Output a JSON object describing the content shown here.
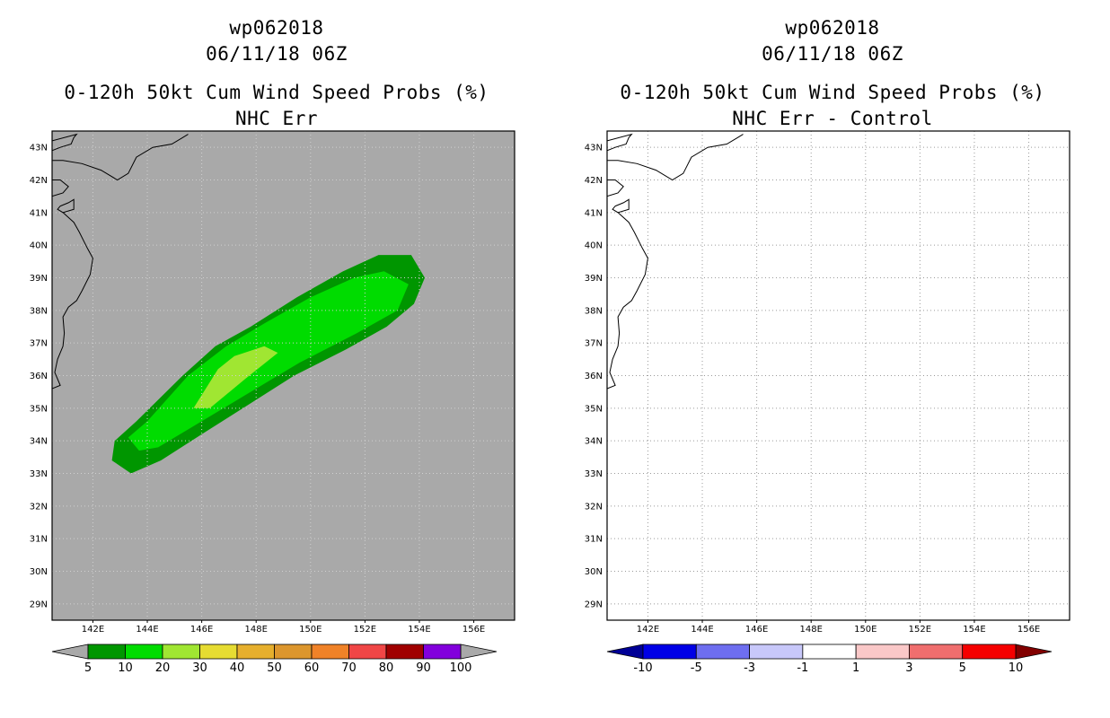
{
  "chart_data": [
    {
      "type": "heatmap",
      "storm_id": "wp062018",
      "datetime": "06/11/18 06Z",
      "title": "0-120h 50kt Cum Wind Speed Probs (%)",
      "subtitle": "NHC Err",
      "xlim": [
        140.5,
        157.5
      ],
      "ylim": [
        28.5,
        43.5
      ],
      "x_ticks": [
        "142E",
        "144E",
        "146E",
        "148E",
        "150E",
        "152E",
        "154E",
        "156E"
      ],
      "y_ticks": [
        "29N",
        "30N",
        "31N",
        "32N",
        "33N",
        "34N",
        "35N",
        "36N",
        "37N",
        "38N",
        "39N",
        "40N",
        "41N",
        "42N",
        "43N"
      ],
      "background": "#a9a9a9",
      "contours": [
        {
          "level": "5-10",
          "color": "#009600",
          "points": [
            [
              143.4,
              33.0
            ],
            [
              142.7,
              33.4
            ],
            [
              142.8,
              34.0
            ],
            [
              143.6,
              34.6
            ],
            [
              145.3,
              36.0
            ],
            [
              146.5,
              36.9
            ],
            [
              147.8,
              37.5
            ],
            [
              149.5,
              38.4
            ],
            [
              151.2,
              39.2
            ],
            [
              152.5,
              39.7
            ],
            [
              153.7,
              39.7
            ],
            [
              154.2,
              39.0
            ],
            [
              153.8,
              38.2
            ],
            [
              152.8,
              37.5
            ],
            [
              151.3,
              36.8
            ],
            [
              149.4,
              36.0
            ],
            [
              147.7,
              35.1
            ],
            [
              146.0,
              34.2
            ],
            [
              144.5,
              33.4
            ]
          ]
        },
        {
          "level": "10-20",
          "color": "#00dc00",
          "points": [
            [
              143.7,
              33.7
            ],
            [
              143.3,
              34.1
            ],
            [
              144.0,
              34.6
            ],
            [
              145.5,
              36.0
            ],
            [
              146.9,
              36.9
            ],
            [
              148.3,
              37.6
            ],
            [
              150.0,
              38.4
            ],
            [
              151.6,
              39.0
            ],
            [
              152.7,
              39.2
            ],
            [
              153.6,
              38.8
            ],
            [
              153.2,
              38.0
            ],
            [
              151.7,
              37.3
            ],
            [
              149.6,
              36.4
            ],
            [
              147.6,
              35.4
            ],
            [
              145.6,
              34.4
            ],
            [
              144.4,
              33.8
            ]
          ]
        },
        {
          "level": "20-30",
          "color": "#a0e632",
          "points": [
            [
              145.7,
              35.0
            ],
            [
              146.6,
              36.2
            ],
            [
              147.2,
              36.6
            ],
            [
              148.3,
              36.9
            ],
            [
              148.8,
              36.7
            ],
            [
              147.6,
              35.9
            ],
            [
              146.3,
              35.0
            ]
          ]
        }
      ],
      "colorbar": {
        "labels": [
          "5",
          "10",
          "20",
          "30",
          "40",
          "50",
          "60",
          "70",
          "80",
          "90",
          "100"
        ],
        "colors": [
          "#009600",
          "#00dc00",
          "#a0e632",
          "#e6dc32",
          "#e6af2d",
          "#dc962d",
          "#f08228",
          "#f04646",
          "#a00000",
          "#8200dc"
        ],
        "ends": [
          "#a9a9a9",
          "#a9a9a9"
        ]
      }
    },
    {
      "type": "heatmap",
      "storm_id": "wp062018",
      "datetime": "06/11/18 06Z",
      "title": "0-120h 50kt Cum Wind Speed Probs (%)",
      "subtitle": "NHC Err - Control",
      "xlim": [
        140.5,
        157.5
      ],
      "ylim": [
        28.5,
        43.5
      ],
      "x_ticks": [
        "142E",
        "144E",
        "146E",
        "148E",
        "150E",
        "152E",
        "154E",
        "156E"
      ],
      "y_ticks": [
        "29N",
        "30N",
        "31N",
        "32N",
        "33N",
        "34N",
        "35N",
        "36N",
        "37N",
        "38N",
        "39N",
        "40N",
        "41N",
        "42N",
        "43N"
      ],
      "background": "#ffffff",
      "grid": true,
      "contours": [],
      "colorbar": {
        "labels": [
          "-10",
          "-5",
          "-3",
          "-1",
          "1",
          "3",
          "5",
          "10"
        ],
        "colors": [
          "#0000e6",
          "#6e6ef0",
          "#c8c8fa",
          "#ffffff",
          "#fac8c8",
          "#f06e6e",
          "#f50000"
        ],
        "ends": [
          "#000096",
          "#820000"
        ]
      }
    }
  ]
}
